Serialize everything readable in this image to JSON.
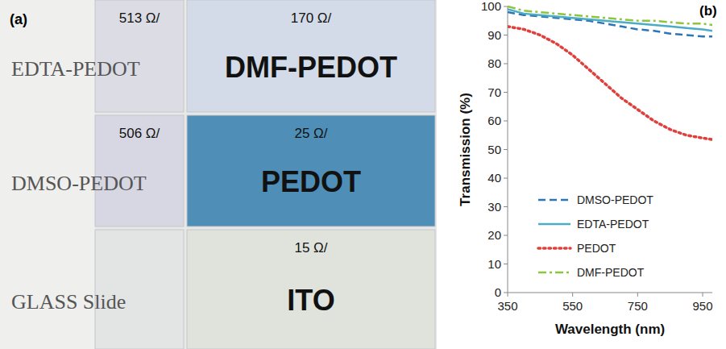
{
  "photo": {
    "label": "(a)",
    "samples": [
      {
        "name": "EDTA-PEDOT",
        "sheet_resistance": "513 Ω/"
      },
      {
        "name": "DMSO-PEDOT",
        "sheet_resistance": "506 Ω/"
      },
      {
        "name": "GLASS Slide"
      },
      {
        "name": "DMF-PEDOT",
        "sheet_resistance": "170 Ω/"
      },
      {
        "name": "PEDOT",
        "sheet_resistance": "25 Ω/"
      },
      {
        "name": "ITO",
        "sheet_resistance": "15 Ω/"
      }
    ]
  },
  "chart_data": {
    "type": "line",
    "annotations": [
      "(b)"
    ],
    "x_label": "Wavelength (nm)",
    "y_label": "Transmission (%)",
    "x": [
      350,
      400,
      450,
      500,
      550,
      600,
      650,
      700,
      750,
      800,
      850,
      900,
      950,
      980
    ],
    "series": [
      {
        "name": "DMSO-PEDOT",
        "color": "#2e75b6",
        "line_style": "dashed",
        "values": [
          98,
          97,
          96.5,
          96,
          95.5,
          95,
          94,
          93,
          92,
          91.5,
          90.5,
          90,
          89.5,
          89.5
        ]
      },
      {
        "name": "EDTA-PEDOT",
        "color": "#4bacc6",
        "line_style": "solid",
        "values": [
          99,
          97.5,
          97,
          96.5,
          96,
          95.5,
          95,
          94.5,
          94,
          93.5,
          93,
          92.5,
          92,
          91.5
        ]
      },
      {
        "name": "PEDOT",
        "color": "#e0403c",
        "line_style": "dotted",
        "values": [
          93,
          92,
          90,
          87,
          83,
          78,
          73,
          68,
          64,
          60,
          57,
          55,
          54,
          53.5
        ]
      },
      {
        "name": "DMF-PEDOT",
        "color": "#8cc63f",
        "line_style": "dashdot",
        "values": [
          100,
          98.5,
          98,
          97.5,
          97,
          96.5,
          96,
          95.5,
          95,
          95,
          94.5,
          94,
          94,
          93.5
        ]
      }
    ],
    "xlim": [
      350,
      980
    ],
    "xticks": [
      350,
      550,
      750,
      950
    ],
    "ylim": [
      0,
      100
    ],
    "yticks": [
      0,
      10,
      20,
      30,
      40,
      50,
      60,
      70,
      80,
      90,
      100
    ],
    "grid": false,
    "legend": "lower left"
  }
}
